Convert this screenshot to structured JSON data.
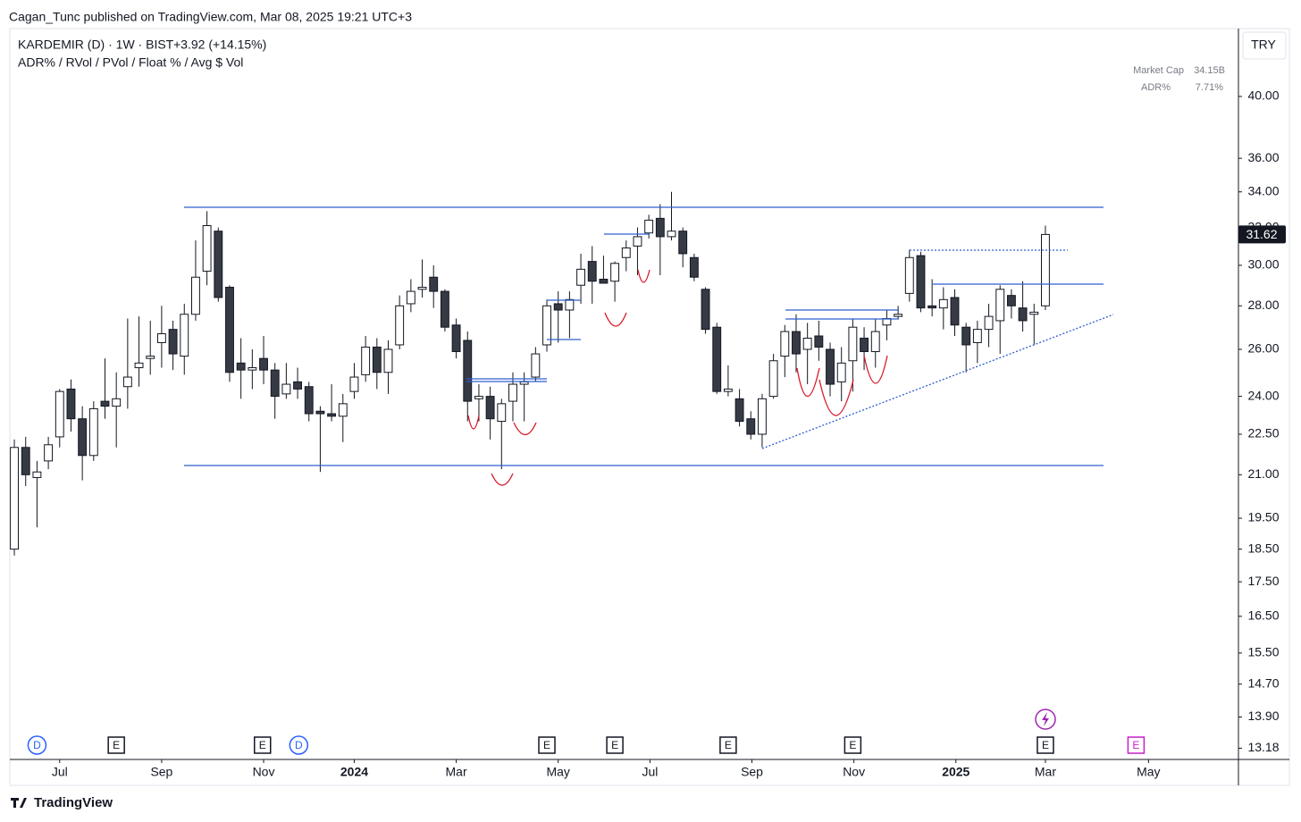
{
  "header": {
    "publisher": "Cagan_Tunc published on TradingView.com, Mar 08, 2025 19:21 UTC+3",
    "footer": "TradingView"
  },
  "chart_data": {
    "type": "candlestick",
    "title": "KARDEMIR (D) · 1W · BIST",
    "change": "+3.92 (+14.15%)",
    "subtitle": "ADR% / RVol / PVol / Float % / Avg $ Vol",
    "stats": [
      {
        "label": "Market Cap",
        "value": "34.15B"
      },
      {
        "label": "ADR%",
        "value": "7.71%"
      }
    ],
    "currency": "TRY",
    "log_scale": true,
    "up_color": "#ffffff",
    "down_color": "#363a45",
    "wick_color": "#131722",
    "open": [
      18.5,
      22.0,
      20.9,
      21.5,
      22.4,
      24.3,
      23.1,
      21.7,
      23.8,
      23.6,
      24.4,
      25.2,
      25.6,
      26.3,
      26.9,
      25.7,
      27.6,
      29.7,
      31.8,
      28.9,
      25.4,
      25.1,
      25.6,
      25.1,
      24.1,
      24.6,
      24.4,
      23.4,
      23.3,
      23.2,
      24.2,
      24.9,
      26.1,
      25.0,
      26.2,
      28.1,
      28.8,
      29.4,
      28.7,
      27.1,
      26.4,
      23.9,
      24.0,
      23.0,
      23.8,
      24.5,
      24.8,
      26.2,
      28.1,
      27.8,
      29.0,
      30.2,
      29.3,
      29.2,
      30.4,
      31.0,
      31.7,
      32.5,
      31.5,
      31.8,
      30.4,
      28.8,
      27.0,
      24.2,
      23.9,
      23.1,
      22.5,
      24.0,
      25.7,
      26.8,
      26.0,
      26.6,
      26.0,
      24.6,
      25.5,
      26.5,
      25.9,
      27.1,
      27.5,
      28.6,
      30.5,
      28.0,
      27.9,
      28.4,
      27.0,
      26.3,
      26.9,
      27.3,
      28.5,
      27.9,
      27.6,
      28.0
    ],
    "high": [
      22.3,
      22.4,
      21.5,
      22.4,
      24.3,
      24.7,
      23.6,
      23.8,
      25.6,
      25.0,
      27.4,
      27.5,
      27.3,
      28.0,
      27.3,
      28.1,
      31.3,
      32.9,
      32.0,
      29.0,
      26.5,
      26.0,
      26.6,
      25.4,
      25.4,
      25.2,
      24.6,
      23.6,
      24.5,
      24.1,
      25.4,
      26.6,
      26.5,
      26.4,
      28.5,
      29.3,
      30.3,
      30.0,
      28.8,
      27.4,
      26.8,
      24.5,
      24.4,
      23.9,
      25.0,
      25.0,
      26.1,
      28.3,
      28.7,
      28.7,
      30.6,
      31.0,
      30.5,
      30.2,
      31.3,
      32.0,
      32.7,
      33.3,
      34.0,
      32.0,
      30.6,
      28.9,
      27.2,
      25.3,
      24.3,
      23.4,
      24.1,
      25.8,
      27.1,
      27.6,
      27.2,
      27.3,
      26.3,
      26.1,
      27.4,
      27.0,
      27.4,
      27.8,
      28.0,
      30.8,
      30.7,
      29.3,
      28.9,
      28.8,
      27.2,
      27.3,
      28.1,
      29.0,
      28.8,
      29.2,
      28.1,
      32.1
    ],
    "low": [
      18.3,
      20.6,
      19.2,
      21.2,
      22.0,
      22.6,
      20.8,
      21.5,
      23.1,
      22.0,
      23.5,
      24.4,
      24.9,
      25.2,
      25.1,
      24.9,
      27.3,
      29.0,
      28.2,
      24.6,
      23.9,
      24.3,
      24.5,
      23.1,
      23.9,
      23.9,
      23.0,
      21.1,
      23.0,
      22.2,
      23.9,
      24.6,
      24.3,
      24.1,
      26.0,
      27.7,
      28.4,
      27.9,
      26.8,
      25.6,
      23.0,
      23.0,
      22.3,
      21.2,
      23.0,
      23.0,
      24.6,
      25.9,
      26.3,
      26.5,
      28.1,
      28.1,
      29.1,
      28.2,
      29.7,
      29.5,
      31.4,
      29.5,
      31.3,
      29.9,
      29.2,
      26.7,
      24.1,
      24.0,
      22.8,
      22.3,
      22.0,
      23.9,
      24.8,
      25.0,
      24.5,
      25.5,
      24.0,
      23.8,
      24.2,
      25.1,
      25.2,
      26.4,
      27.4,
      28.2,
      27.7,
      27.5,
      26.9,
      26.6,
      25.0,
      25.4,
      26.1,
      25.8,
      27.4,
      26.8,
      26.2,
      27.8
    ],
    "close": [
      22.0,
      21.0,
      21.1,
      22.1,
      24.2,
      23.1,
      21.7,
      23.5,
      23.6,
      23.9,
      24.8,
      25.4,
      25.7,
      26.7,
      25.8,
      27.6,
      29.4,
      32.1,
      28.4,
      25.0,
      25.1,
      25.2,
      25.1,
      24.0,
      24.5,
      24.3,
      23.3,
      23.3,
      23.2,
      23.7,
      24.8,
      26.1,
      25.0,
      26.0,
      28.0,
      28.7,
      28.9,
      28.7,
      27.0,
      25.9,
      23.8,
      24.0,
      23.1,
      23.7,
      24.5,
      24.6,
      25.8,
      28.0,
      27.8,
      28.3,
      29.8,
      29.2,
      29.1,
      30.1,
      30.9,
      31.5,
      32.4,
      31.5,
      31.8,
      30.6,
      29.4,
      26.9,
      24.2,
      24.3,
      23.0,
      22.5,
      23.9,
      25.5,
      26.8,
      25.8,
      26.5,
      26.1,
      24.5,
      25.4,
      27.0,
      25.9,
      26.8,
      27.4,
      27.6,
      30.4,
      27.9,
      27.9,
      28.3,
      27.1,
      26.2,
      26.9,
      27.5,
      28.8,
      28.0,
      27.3,
      27.7,
      31.62
    ],
    "xlim": [
      -0.32,
      107.96
    ],
    "xticks": [
      {
        "value": 4,
        "label": "Jul"
      },
      {
        "value": 13,
        "label": "Sep"
      },
      {
        "value": 22,
        "label": "Nov"
      },
      {
        "value": 30,
        "label": "2024"
      },
      {
        "value": 39,
        "label": "Mar"
      },
      {
        "value": 48,
        "label": "May"
      },
      {
        "value": 56.1,
        "label": "Jul"
      },
      {
        "value": 65.1,
        "label": "Sep"
      },
      {
        "value": 74.1,
        "label": "Nov"
      },
      {
        "value": 83.1,
        "label": "2025"
      },
      {
        "value": 91,
        "label": "Mar"
      },
      {
        "value": 100.1,
        "label": "May"
      }
    ],
    "ylim": [
      12.93,
      44.9
    ],
    "yticks": [
      {
        "value": 40,
        "label": "40.00"
      },
      {
        "value": 36,
        "label": "36.00"
      },
      {
        "value": 34,
        "label": "34.00"
      },
      {
        "value": 32,
        "label": "32.00"
      },
      {
        "value": 30,
        "label": "30.00"
      },
      {
        "value": 28,
        "label": "28.00"
      },
      {
        "value": 26,
        "label": "26.00"
      },
      {
        "value": 24,
        "label": "24.00"
      },
      {
        "value": 22.5,
        "label": "22.50"
      },
      {
        "value": 21,
        "label": "21.00"
      },
      {
        "value": 19.5,
        "label": "19.50"
      },
      {
        "value": 18.5,
        "label": "18.50"
      },
      {
        "value": 17.5,
        "label": "17.50"
      },
      {
        "value": 16.5,
        "label": "16.50"
      },
      {
        "value": 15.5,
        "label": "15.50"
      },
      {
        "value": 14.7,
        "label": "14.70"
      },
      {
        "value": 13.9,
        "label": "13.90"
      },
      {
        "value": 13.18,
        "label": "13.18"
      }
    ],
    "events": [
      {
        "label": "D",
        "x": 2
      },
      {
        "label": "E",
        "x": 9
      },
      {
        "label": "E",
        "x": 21.9
      },
      {
        "label": "D",
        "x": 25.1
      },
      {
        "label": "E",
        "x": 47
      },
      {
        "label": "E",
        "x": 53
      },
      {
        "label": "E",
        "x": 63
      },
      {
        "label": "E",
        "x": 74
      },
      {
        "label": "E",
        "x": 91
      },
      {
        "label": "E",
        "x": 99
      }
    ]
  }
}
